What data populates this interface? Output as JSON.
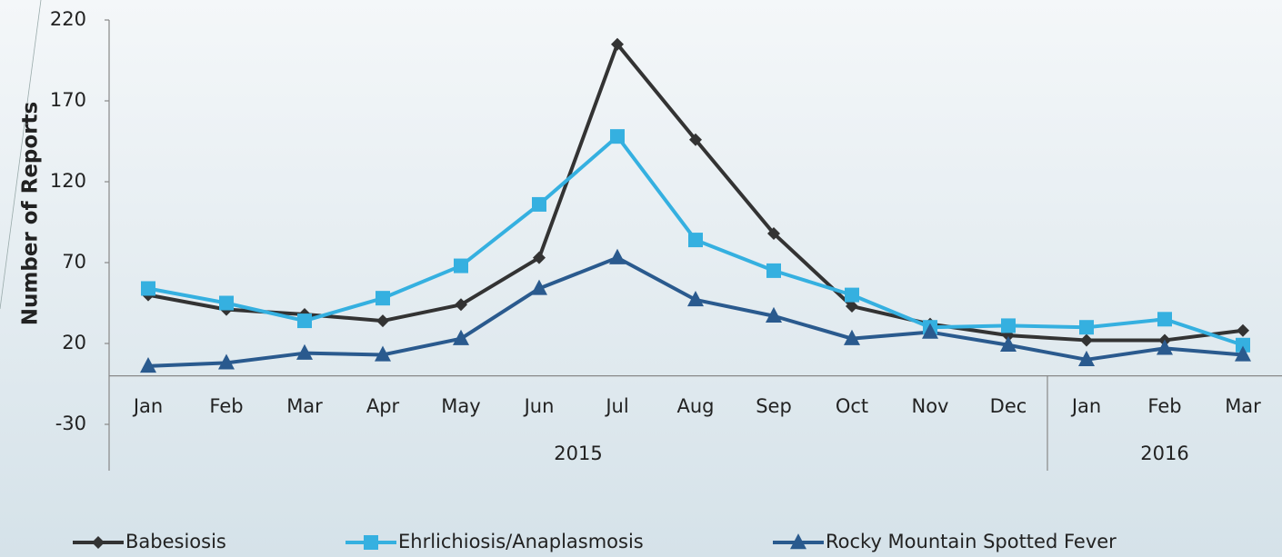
{
  "chart_data": {
    "type": "line",
    "y_label": "Number of Reports",
    "category_groups": [
      {
        "label": "2015",
        "categories": [
          "Jan",
          "Feb",
          "Mar",
          "Apr",
          "May",
          "Jun",
          "Jul",
          "Aug",
          "Sep",
          "Oct",
          "Nov",
          "Dec"
        ]
      },
      {
        "label": "2016",
        "categories": [
          "Jan",
          "Feb",
          "Mar"
        ]
      }
    ],
    "series": [
      {
        "name": "Babesiosis",
        "color": "#333333",
        "marker": "diamond",
        "values": [
          50,
          41,
          38,
          34,
          44,
          73,
          205,
          146,
          88,
          43,
          32,
          25,
          22,
          22,
          28
        ]
      },
      {
        "name": "Ehrlichiosis/Anaplasmosis",
        "color": "#35b0e0",
        "marker": "square",
        "values": [
          54,
          45,
          34,
          48,
          68,
          106,
          148,
          84,
          65,
          50,
          30,
          31,
          30,
          35,
          19
        ]
      },
      {
        "name": "Rocky Mountain Spotted Fever",
        "color": "#2a5a8e",
        "marker": "triangle",
        "values": [
          6,
          8,
          14,
          13,
          23,
          54,
          73,
          47,
          37,
          23,
          27,
          19,
          10,
          17,
          13
        ]
      }
    ],
    "ylim": [
      -30,
      220
    ],
    "yticks": [
      -30,
      20,
      70,
      120,
      170,
      220
    ],
    "legend": "bottom"
  }
}
